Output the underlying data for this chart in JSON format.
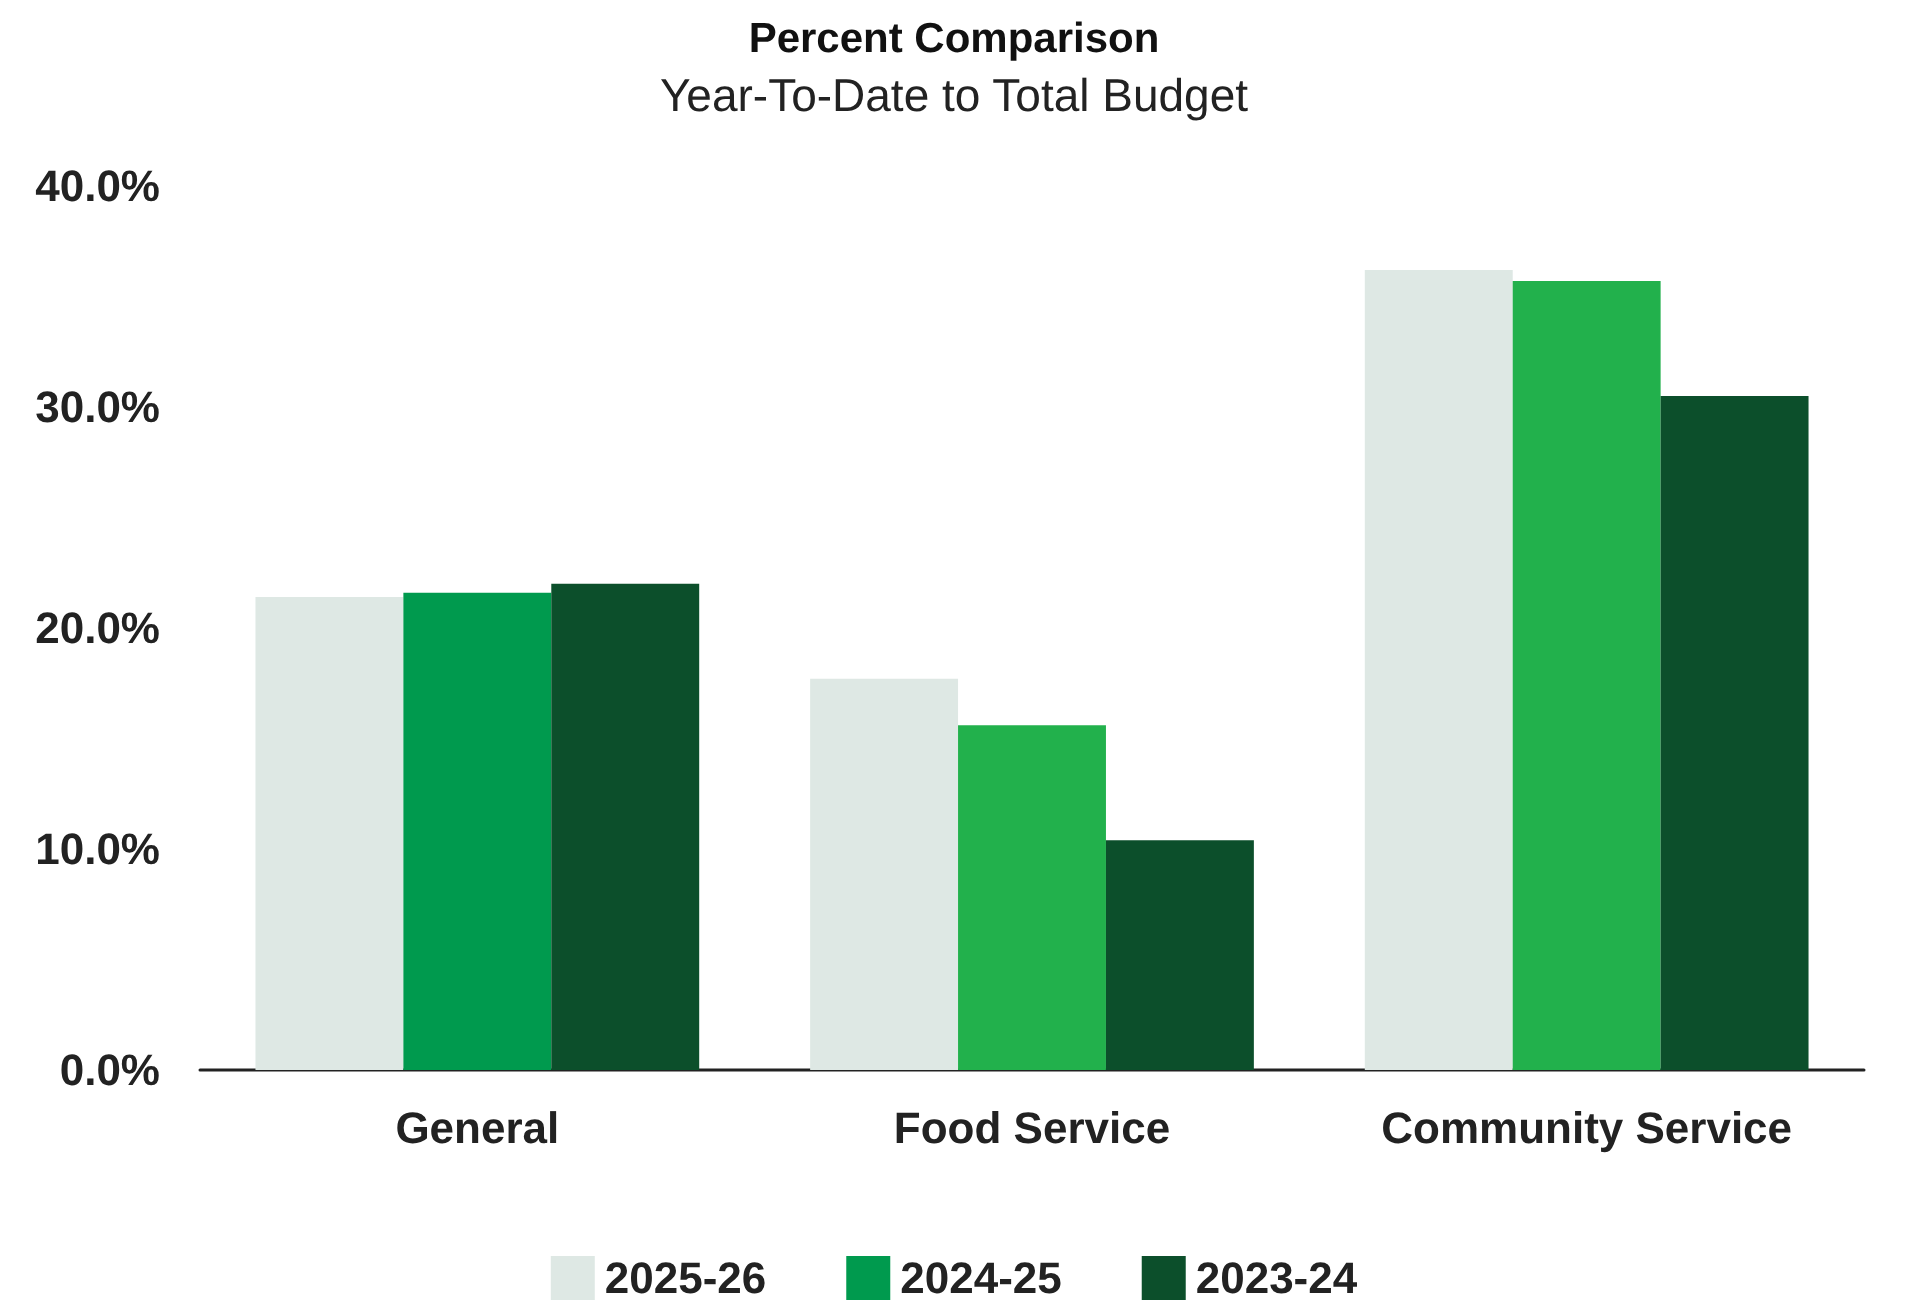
{
  "chart_data": {
    "type": "bar",
    "title": "Percent Comparison",
    "subtitle": "Year-To-Date to Total Budget",
    "categories": [
      "General",
      "Food Service",
      "Community Service"
    ],
    "series": [
      {
        "name": "2025-26",
        "color": "#dee8e4",
        "values": [
          21.4,
          17.7,
          36.2
        ]
      },
      {
        "name": "2024-25",
        "color": "#009a4e",
        "colors": [
          "#009a4e",
          "#22b14c",
          "#22b14c"
        ],
        "values": [
          21.6,
          15.6,
          35.7
        ]
      },
      {
        "name": "2023-24",
        "color": "#0c4f2b",
        "values": [
          22.0,
          10.4,
          30.5
        ]
      }
    ],
    "ylim": [
      0,
      40
    ],
    "yticks": [
      {
        "value": 0,
        "label": "0.0%"
      },
      {
        "value": 10,
        "label": "10.0%"
      },
      {
        "value": 20,
        "label": "20.0%"
      },
      {
        "value": 30,
        "label": "30.0%"
      },
      {
        "value": 40,
        "label": "40.0%"
      }
    ],
    "grid": false,
    "legend": "bottom"
  }
}
